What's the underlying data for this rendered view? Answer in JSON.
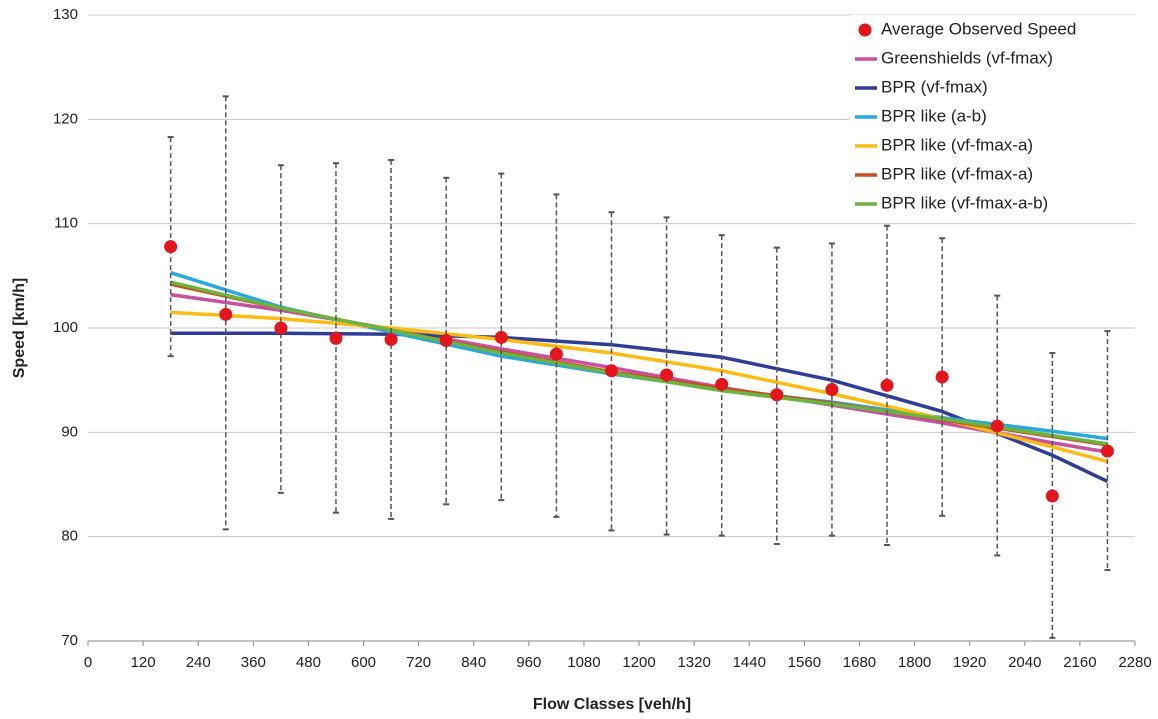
{
  "chart_data": {
    "type": "scatter",
    "x_label": "Flow Classes [veh/h]",
    "y_label": "Speed [km/h]",
    "xlim": [
      0,
      2280
    ],
    "xticks": [
      0,
      120,
      240,
      360,
      480,
      600,
      720,
      840,
      960,
      1080,
      1200,
      1320,
      1440,
      1560,
      1680,
      1800,
      1920,
      2040,
      2160,
      2280
    ],
    "ylim": [
      70,
      130
    ],
    "yticks": [
      70,
      80,
      90,
      100,
      110,
      120,
      130
    ],
    "grid": true,
    "legend": "upper right",
    "series": [
      {
        "name": "Average Observed Speed",
        "type": "scatter",
        "color": "#e3161e",
        "x": [
          180,
          300,
          420,
          540,
          660,
          780,
          900,
          1020,
          1140,
          1260,
          1380,
          1500,
          1620,
          1740,
          1860,
          1980,
          2100,
          2220
        ],
        "values": [
          107.8,
          101.3,
          100.0,
          99.0,
          98.9,
          98.8,
          99.1,
          97.5,
          95.9,
          95.5,
          94.6,
          93.6,
          94.1,
          94.5,
          95.3,
          90.6,
          83.9,
          88.2
        ],
        "upper": [
          118.3,
          122.2,
          115.6,
          115.8,
          116.1,
          114.4,
          114.8,
          112.8,
          111.1,
          110.6,
          108.9,
          107.7,
          108.1,
          109.8,
          108.6,
          103.1,
          97.6,
          99.7
        ],
        "lower": [
          97.3,
          80.7,
          84.2,
          82.3,
          81.7,
          83.1,
          83.5,
          81.9,
          80.6,
          80.2,
          80.1,
          79.3,
          80.1,
          79.2,
          82.0,
          78.2,
          70.3,
          76.8
        ]
      },
      {
        "name": "Greenshields (vf-fmax)",
        "type": "line",
        "color": "#c9509f",
        "x": [
          180,
          420,
          660,
          900,
          1140,
          1380,
          1620,
          1860,
          2100,
          2220
        ],
        "values": [
          103.2,
          101.7,
          99.9,
          98.0,
          96.2,
          94.3,
          92.6,
          90.9,
          89.0,
          88.1
        ]
      },
      {
        "name": "BPR (vf-fmax)",
        "type": "line",
        "color": "#2e3d96",
        "x": [
          180,
          420,
          660,
          900,
          1140,
          1380,
          1620,
          1860,
          2100,
          2220
        ],
        "values": [
          99.5,
          99.5,
          99.4,
          99.1,
          98.4,
          97.2,
          95.0,
          92.0,
          87.8,
          85.3
        ]
      },
      {
        "name": "BPR like (a-b)",
        "type": "line",
        "color": "#2aa7dc",
        "x": [
          180,
          420,
          660,
          900,
          1140,
          1380,
          1620,
          1860,
          2100,
          2220
        ],
        "values": [
          105.3,
          102.0,
          99.6,
          97.3,
          95.6,
          94.1,
          92.9,
          91.4,
          90.1,
          89.4
        ]
      },
      {
        "name": "BPR like (vf-fmax-a)",
        "type": "line",
        "color": "#fdbb13",
        "x": [
          180,
          420,
          660,
          900,
          1140,
          1380,
          1620,
          1860,
          2100,
          2220
        ],
        "values": [
          101.5,
          100.9,
          100.0,
          98.9,
          97.6,
          95.9,
          93.7,
          91.3,
          88.6,
          87.2
        ]
      },
      {
        "name": "BPR like (vf-fmax-a)",
        "type": "line",
        "color": "#c5501f",
        "x": [
          180,
          420,
          660,
          900,
          1140,
          1380,
          1620,
          1860,
          2100,
          2220
        ],
        "values": [
          104.2,
          101.9,
          99.8,
          97.7,
          95.8,
          94.2,
          92.8,
          91.2,
          89.6,
          88.8
        ]
      },
      {
        "name": "BPR like (vf-fmax-a-b)",
        "type": "line",
        "color": "#6cb43f",
        "x": [
          180,
          420,
          660,
          900,
          1140,
          1380,
          1620,
          1860,
          2100,
          2220
        ],
        "values": [
          104.4,
          101.9,
          99.8,
          97.6,
          95.7,
          94.0,
          92.7,
          91.3,
          89.7,
          88.9
        ]
      }
    ]
  }
}
